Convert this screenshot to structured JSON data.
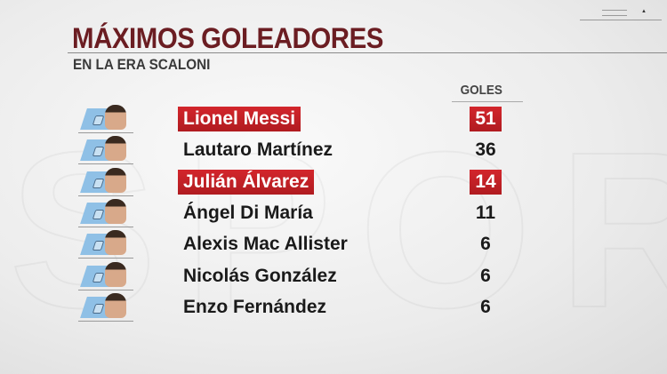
{
  "title": "MÁXIMOS GOLEADORES",
  "subtitle": "EN LA ERA SCALONI",
  "column_header": "GOLES",
  "colors": {
    "title": "#6b1d22",
    "highlight": "#c82026"
  },
  "players": [
    {
      "name": "Lionel Messi",
      "goals": "51",
      "highlight": true
    },
    {
      "name": "Lautaro Martínez",
      "goals": "36",
      "highlight": false
    },
    {
      "name": "Julián Álvarez",
      "goals": "14",
      "highlight": true
    },
    {
      "name": "Ángel Di María",
      "goals": "11",
      "highlight": false
    },
    {
      "name": "Alexis Mac Allister",
      "goals": "6",
      "highlight": false
    },
    {
      "name": "Nicolás González",
      "goals": "6",
      "highlight": false
    },
    {
      "name": "Enzo Fernández",
      "goals": "6",
      "highlight": false
    }
  ]
}
